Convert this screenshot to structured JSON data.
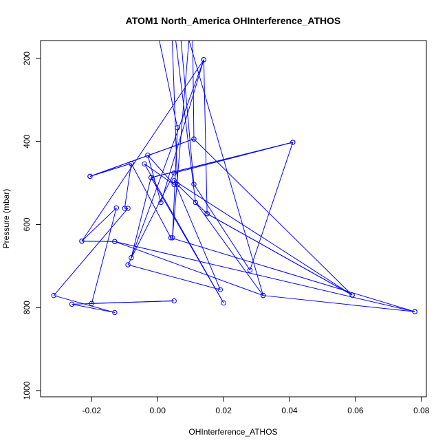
{
  "chart_data": {
    "type": "line",
    "title": "ATOM1 North_America OHInterference_ATHOS",
    "xlabel": "OHInterference_ATHOS",
    "ylabel": "Pressure (mbar)",
    "xlim": [
      -0.0355,
      0.0815
    ],
    "ylim": [
      1015,
      157
    ],
    "y_reversed": true,
    "grid": false,
    "legend": "none",
    "xticks": [
      -0.02,
      0.0,
      0.02,
      0.04,
      0.06,
      0.08
    ],
    "xtick_labels": [
      "-0.02",
      "0.00",
      "0.02",
      "0.04",
      "0.06",
      "0.08"
    ],
    "yticks": [
      200,
      400,
      600,
      800,
      1000
    ],
    "ytick_labels": [
      "200",
      "400",
      "600",
      "800",
      "1000"
    ],
    "marker": "open-circle",
    "series": [
      {
        "color": "#0000ff",
        "points": [
          {
            "x": -0.002,
            "y": 60
          },
          {
            "x": 0.006,
            "y": 367
          },
          {
            "x": 0.0045,
            "y": 632
          },
          {
            "x": 0.0105,
            "y": 60
          },
          {
            "x": 0.011,
            "y": 394
          },
          {
            "x": -0.0205,
            "y": 484
          },
          {
            "x": -0.008,
            "y": 453
          },
          {
            "x": -0.01,
            "y": 561
          },
          {
            "x": -0.009,
            "y": 561
          },
          {
            "x": -0.0315,
            "y": 771
          },
          {
            "x": -0.013,
            "y": 812
          },
          {
            "x": -0.026,
            "y": 792
          },
          {
            "x": 0.005,
            "y": 784
          },
          {
            "x": -0.02,
            "y": 790
          },
          {
            "x": -0.0125,
            "y": 560
          },
          {
            "x": -0.023,
            "y": 640
          },
          {
            "x": -0.013,
            "y": 641
          },
          {
            "x": 0.032,
            "y": 771
          },
          {
            "x": 0.0115,
            "y": 547
          },
          {
            "x": 0.004,
            "y": 60
          },
          {
            "x": 0.006,
            "y": 504
          },
          {
            "x": 0.015,
            "y": 574
          },
          {
            "x": 0.059,
            "y": 770
          },
          {
            "x": 0.005,
            "y": 494
          },
          {
            "x": 0.019,
            "y": 757
          },
          {
            "x": -0.009,
            "y": 697
          },
          {
            "x": 0.005,
            "y": 476
          },
          {
            "x": 0.041,
            "y": 402
          },
          {
            "x": -0.002,
            "y": 487
          },
          {
            "x": -0.008,
            "y": 680
          },
          {
            "x": 0.014,
            "y": 203
          },
          {
            "x": -0.023,
            "y": 640
          },
          {
            "x": -0.013,
            "y": 641
          },
          {
            "x": 0.078,
            "y": 810
          },
          {
            "x": 0.032,
            "y": 771
          },
          {
            "x": 0.006,
            "y": 60
          },
          {
            "x": 0.011,
            "y": 503
          },
          {
            "x": 0.028,
            "y": 710
          },
          {
            "x": 0.041,
            "y": 402
          },
          {
            "x": -0.002,
            "y": 487
          },
          {
            "x": 0.02,
            "y": 789
          },
          {
            "x": -0.004,
            "y": 454
          },
          {
            "x": 0.005,
            "y": 504
          },
          {
            "x": -0.003,
            "y": 433
          },
          {
            "x": 0.001,
            "y": 547
          },
          {
            "x": 0.014,
            "y": 203
          },
          {
            "x": 0.015,
            "y": 574
          },
          {
            "x": 0.059,
            "y": 770
          },
          {
            "x": 0.011,
            "y": 394
          },
          {
            "x": -0.0205,
            "y": 484
          },
          {
            "x": -0.008,
            "y": 453
          },
          {
            "x": 0.004,
            "y": 632
          },
          {
            "x": 0.078,
            "y": 810
          }
        ]
      }
    ]
  }
}
